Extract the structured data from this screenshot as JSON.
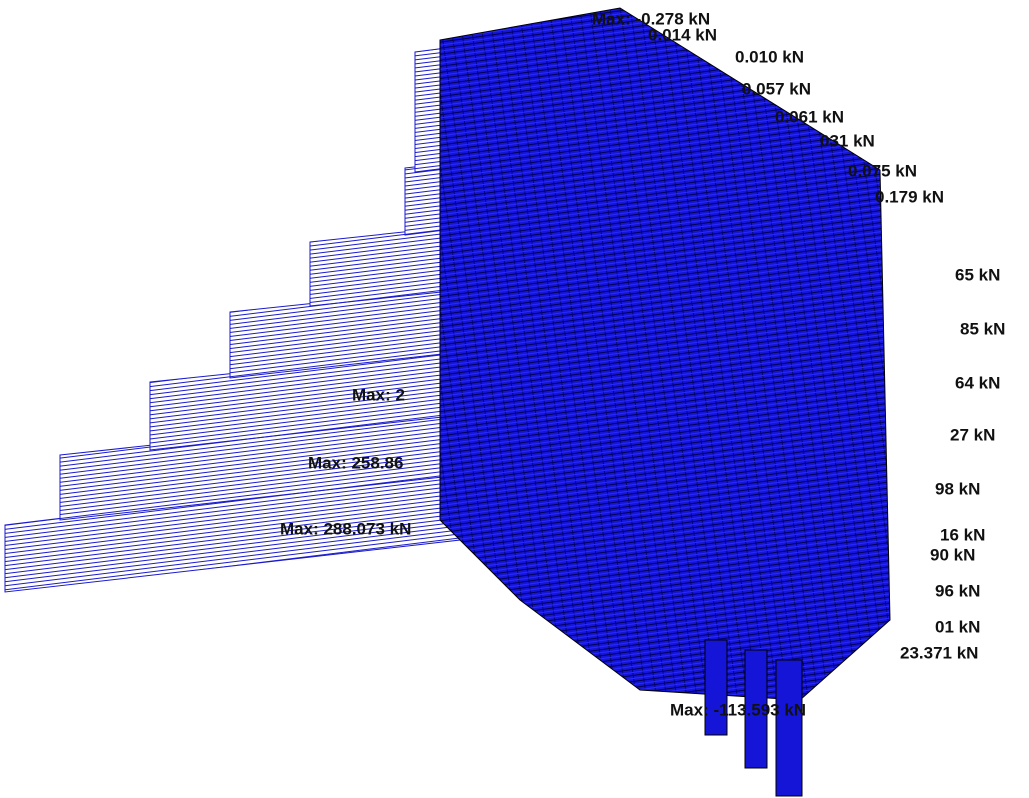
{
  "diagram": {
    "labels": [
      "Max: -0.278 kN",
      "0.014 kN",
      "0.010 kN",
      "0.057 kN",
      "0.061 kN",
      "031 kN",
      "0.075 kN",
      "0.179 kN",
      "65 kN",
      "85 kN",
      "64 kN",
      "27 kN",
      "98 kN",
      "16 kN",
      "90 kN",
      "96 kN",
      "01 kN",
      "23.371 kN",
      "Max: 258.86",
      "Max: 2",
      "Max: 288.073 kN",
      "Max: -113.593 kN"
    ]
  }
}
